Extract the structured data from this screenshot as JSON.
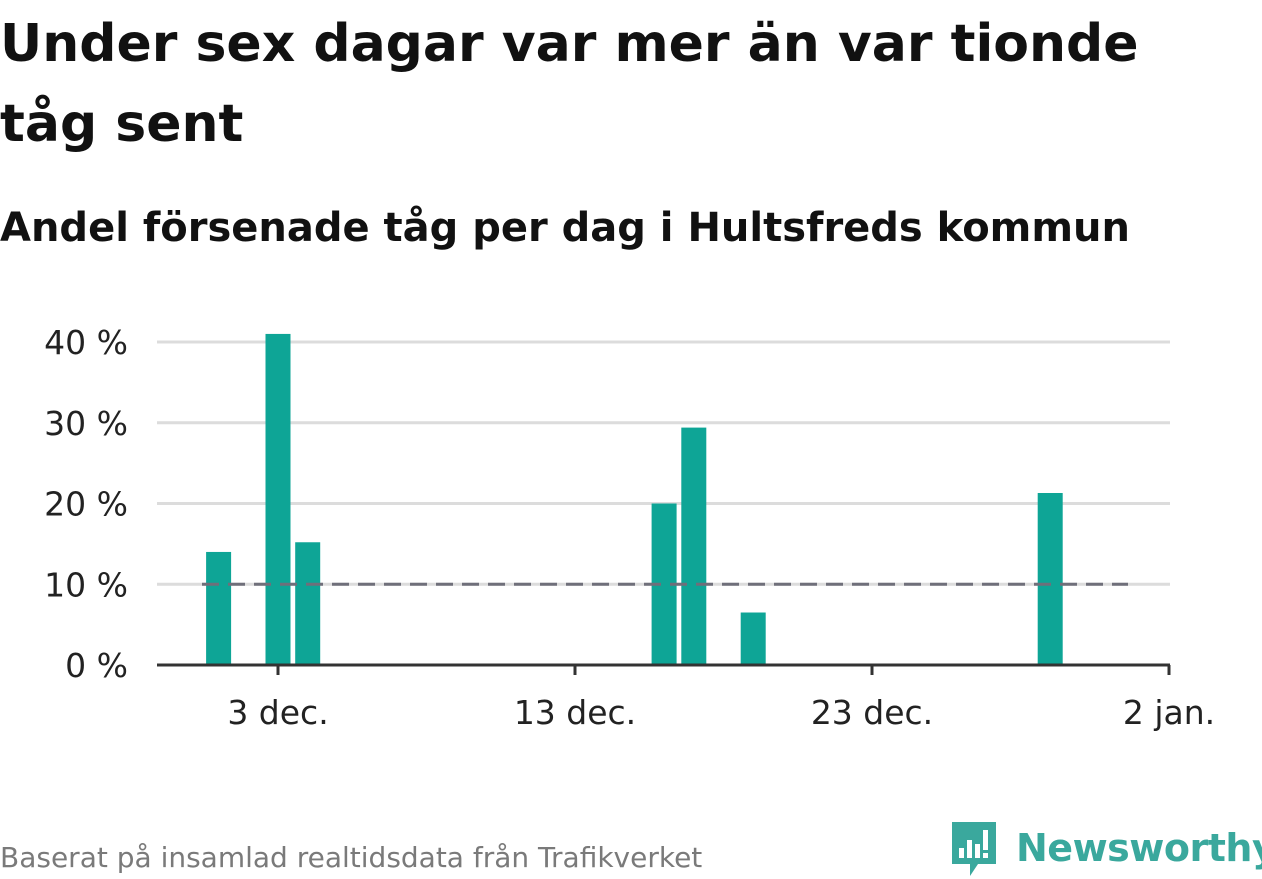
{
  "header": {
    "title": "Under sex dagar var mer än var tionde tåg sent",
    "subtitle": "Andel försenade tåg per dag i Hultsfreds kommun"
  },
  "footer": {
    "source": "Baserat på insamlad realtidsdata från Trafikverket",
    "brand": "Newsworthy",
    "brand_icon": "newsworthy-logo-icon"
  },
  "colors": {
    "bar": "#0ea596",
    "reference_line": "#6f6f7a",
    "grid": "#dcdcdc",
    "axis": "#333333",
    "brand": "#3aa89d"
  },
  "chart_data": {
    "type": "bar",
    "x_start": "2020-11-29",
    "x_end": "2021-01-01",
    "x_tick_labels": [
      "3 dec.",
      "13 dec.",
      "23 dec.",
      "2 jan."
    ],
    "y_tick_labels": [
      "0 %",
      "10 %",
      "20 %",
      "30 %",
      "40 %"
    ],
    "ylim": [
      0,
      40
    ],
    "grid": true,
    "series": [
      {
        "points": [
          {
            "date": "2020-12-01",
            "value": 14
          },
          {
            "date": "2020-12-03",
            "value": 41
          },
          {
            "date": "2020-12-04",
            "value": 15.2
          },
          {
            "date": "2020-12-16",
            "value": 20
          },
          {
            "date": "2020-12-17",
            "value": 29.4
          },
          {
            "date": "2020-12-19",
            "value": 6.5
          },
          {
            "date": "2020-12-29",
            "value": 21.3
          }
        ]
      }
    ],
    "reference_line": {
      "value": 10,
      "style": "dashed"
    }
  }
}
